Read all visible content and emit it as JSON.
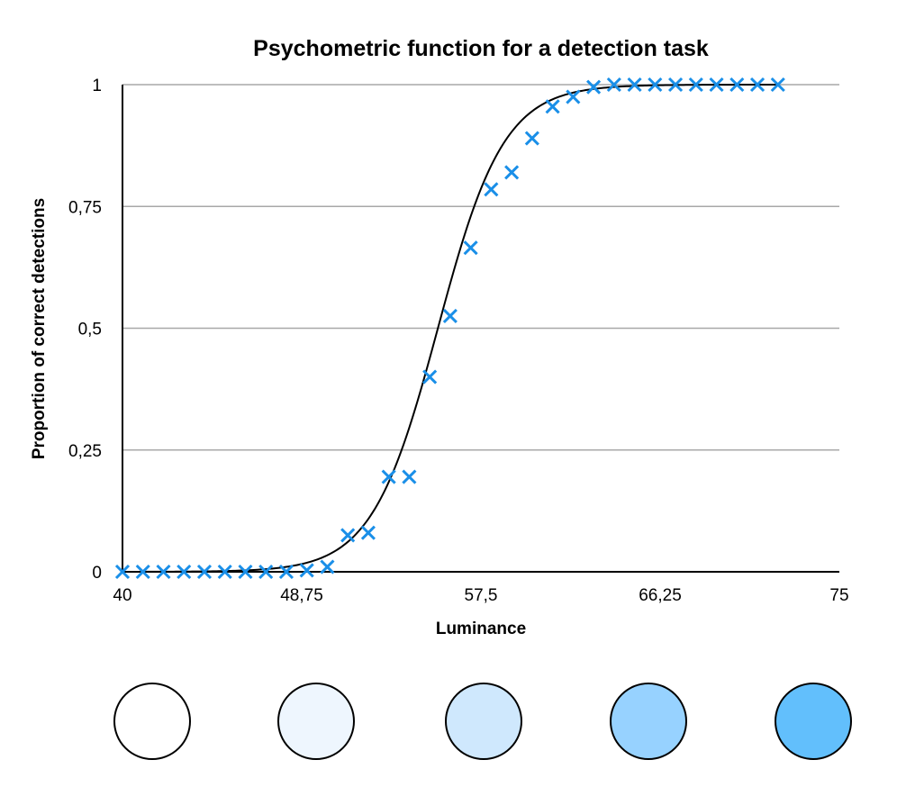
{
  "chart_data": {
    "type": "scatter",
    "title": "Psychometric function for a detection task",
    "xlabel": "Luminance",
    "ylabel": "Proportion of correct detections",
    "xlim": [
      40,
      75
    ],
    "ylim": [
      0,
      1
    ],
    "x_ticks": [
      "40",
      "48,75",
      "57,5",
      "66,25",
      "75"
    ],
    "y_ticks": [
      "0",
      "0,25",
      "0,5",
      "0,75",
      "1"
    ],
    "x_tick_values": [
      40,
      48.75,
      57.5,
      66.25,
      75
    ],
    "y_tick_values": [
      0,
      0.25,
      0.5,
      0.75,
      1
    ],
    "grid": true,
    "marker": "x",
    "marker_color": "#1a8fe8",
    "curve_color": "#000000",
    "curve": {
      "type": "logistic",
      "midpoint": 55.4,
      "slope": 0.62
    },
    "series": [
      {
        "x": [
          40,
          41,
          42,
          43,
          44,
          45,
          46,
          47,
          48,
          49,
          50,
          51,
          52,
          53,
          54,
          55,
          56,
          57,
          58,
          59,
          60,
          61,
          62,
          63,
          64,
          65,
          66,
          67,
          68,
          69,
          70,
          71,
          72
        ],
        "y": [
          0,
          0,
          0,
          0,
          0,
          0,
          0,
          0,
          0,
          0.003,
          0.01,
          0.075,
          0.08,
          0.195,
          0.195,
          0.4,
          0.525,
          0.665,
          0.785,
          0.82,
          0.89,
          0.955,
          0.975,
          0.995,
          1,
          1,
          1,
          1,
          1,
          1,
          1,
          1,
          1
        ]
      }
    ]
  },
  "swatches": [
    {
      "color": "#ffffff"
    },
    {
      "color": "#eef6fe"
    },
    {
      "color": "#cfe8fd"
    },
    {
      "color": "#97d2ff"
    },
    {
      "color": "#62bffc"
    }
  ]
}
